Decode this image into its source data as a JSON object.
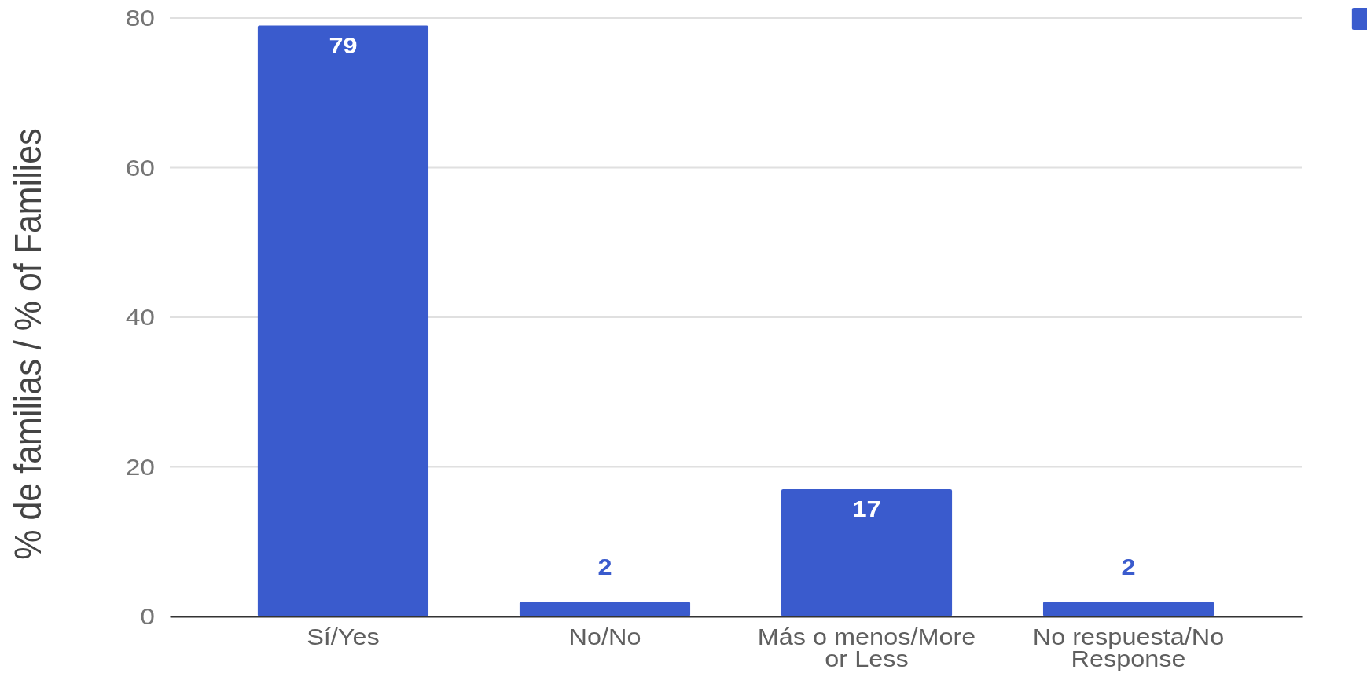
{
  "chart_data": {
    "type": "bar",
    "ylabel": "% de familias / % of Families",
    "categories": [
      "Sí/Yes",
      "No/No",
      "Más o menos/More or Less",
      "No respuesta/No Response"
    ],
    "series": [
      {
        "color": "#3a5bcd",
        "values": [
          79,
          2,
          17,
          2
        ]
      }
    ],
    "ylim": [
      0,
      80
    ],
    "yticks": [
      0,
      20,
      40,
      60,
      80
    ],
    "grid": "y",
    "data_labels": true
  }
}
